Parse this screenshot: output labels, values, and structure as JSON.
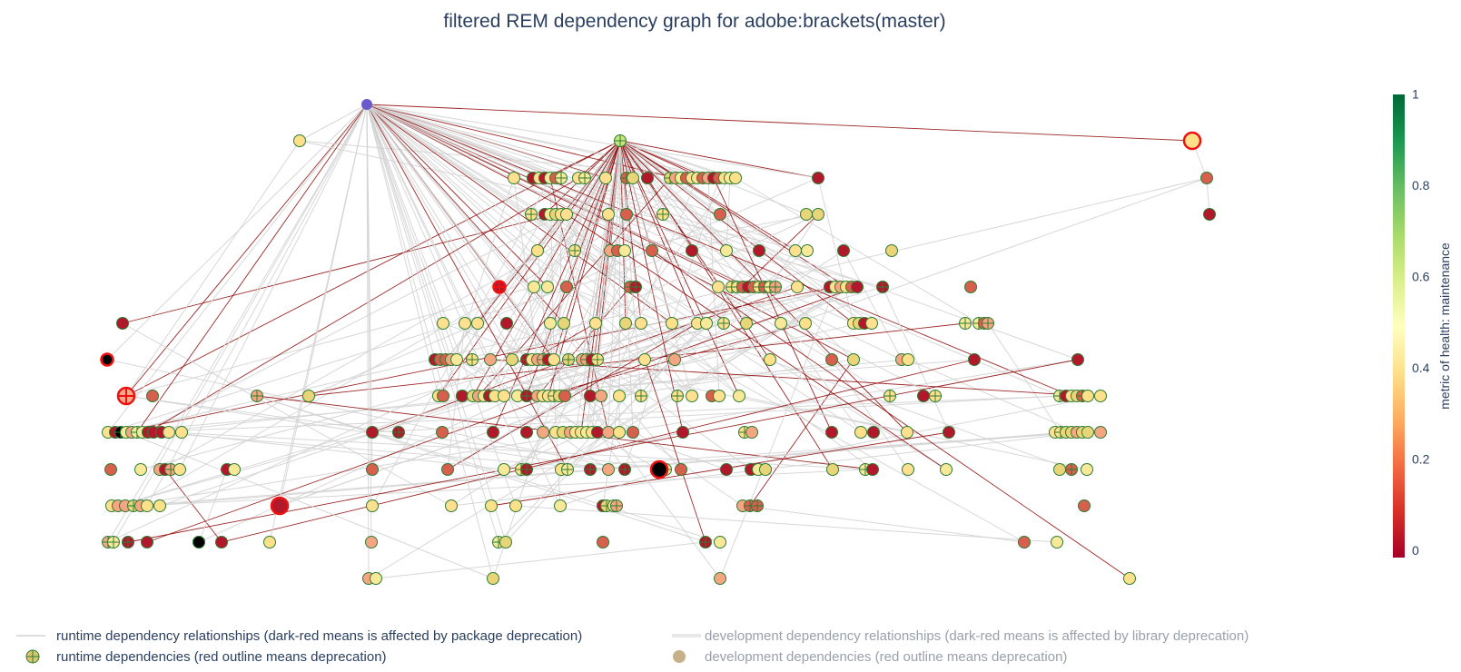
{
  "chart_data": {
    "type": "network",
    "title": "filtered REM dependency graph for adobe:brackets(master)",
    "colorbar": {
      "title": "metric of health: maintenance",
      "ticks": [
        "0",
        "0.2",
        "0.4",
        "0.6",
        "0.8",
        "1"
      ],
      "range": [
        0,
        1
      ],
      "colorscale": [
        "#a50026",
        "#d73027",
        "#f46d43",
        "#fdae61",
        "#fee08b",
        "#ffffbf",
        "#d9ef8b",
        "#a6d96a",
        "#66bd63",
        "#1a9850",
        "#006837"
      ]
    },
    "legend": [
      {
        "label": "runtime dependency relationships (dark-red means is affected by package deprecation)",
        "symbol": "line",
        "active": true
      },
      {
        "label": "development dependency relationships (dark-red means is affected by library deprecation)",
        "symbol": "thick-line",
        "active": false
      },
      {
        "label": "runtime dependencies (red outline means deprecation)",
        "symbol": "circle-cross",
        "active": true
      },
      {
        "label": "development dependencies (red outline means deprecation)",
        "symbol": "circle",
        "active": false
      }
    ],
    "colors": {
      "edge_normal": "#d3d3d3",
      "edge_deprecated": "#8b0000",
      "node_outline": "#2e7d32",
      "deprecated_outline": "#ee1111",
      "root_node": "#6a5acd"
    },
    "deprecated_node_ids": [
      "h1",
      "l5a",
      "l8a",
      "l7a"
    ],
    "dark_node_ids": [
      "l7a",
      "l9c"
    ]
  }
}
